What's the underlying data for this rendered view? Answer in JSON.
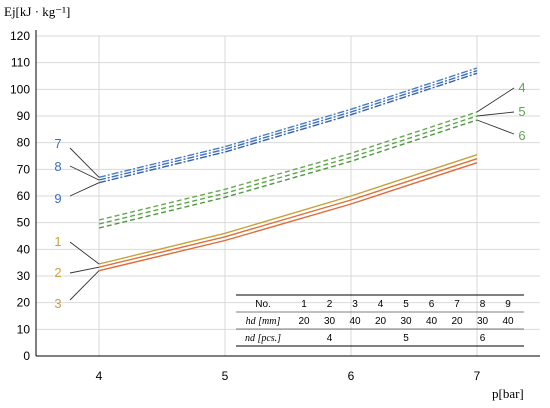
{
  "chart_data": {
    "type": "line",
    "ylabel": "Ej[kJ · kg⁻¹]",
    "xlabel": "p[bar]",
    "xlim": [
      3.5,
      7.5
    ],
    "ylim": [
      0,
      120
    ],
    "x_ticks": [
      "4",
      "5",
      "6",
      "7"
    ],
    "y_ticks": [
      "0",
      "10",
      "20",
      "30",
      "40",
      "50",
      "60",
      "70",
      "80",
      "90",
      "100",
      "110",
      "120"
    ],
    "grid": true,
    "series": [
      {
        "name": "1",
        "color": "#c8a13a",
        "style": "solid",
        "x": [
          4,
          5,
          6,
          7
        ],
        "y": [
          34.5,
          46,
          60,
          75.5
        ]
      },
      {
        "name": "2",
        "color": "#d9733a",
        "style": "solid",
        "x": [
          4,
          5,
          6,
          7
        ],
        "y": [
          33.3,
          44.7,
          58.5,
          74
        ]
      },
      {
        "name": "3",
        "color": "#e06a3a",
        "style": "solid",
        "x": [
          4,
          5,
          6,
          7
        ],
        "y": [
          32,
          43.3,
          57,
          72.5
        ]
      },
      {
        "name": "4",
        "color": "#6aa84f",
        "style": "dashed",
        "x": [
          4,
          5,
          6,
          7
        ],
        "y": [
          51,
          62.5,
          76,
          91.5
        ]
      },
      {
        "name": "5",
        "color": "#5aa84a",
        "style": "dashed",
        "x": [
          4,
          5,
          6,
          7
        ],
        "y": [
          49.5,
          61,
          74.5,
          90
        ]
      },
      {
        "name": "6",
        "color": "#4c9a3c",
        "style": "dashed",
        "x": [
          4,
          5,
          6,
          7
        ],
        "y": [
          48,
          59.5,
          73,
          88.5
        ]
      },
      {
        "name": "7",
        "color": "#4a7ec8",
        "style": "dashdot",
        "x": [
          4,
          5,
          6,
          7
        ],
        "y": [
          67,
          78.5,
          92.5,
          108
        ]
      },
      {
        "name": "8",
        "color": "#3c6fbf",
        "style": "dashdot",
        "x": [
          4,
          5,
          6,
          7
        ],
        "y": [
          66,
          77.5,
          91.5,
          107
        ]
      },
      {
        "name": "9",
        "color": "#2f62b3",
        "style": "dashdot",
        "x": [
          4,
          5,
          6,
          7
        ],
        "y": [
          65,
          76.5,
          90.5,
          106
        ]
      }
    ],
    "callouts": [
      {
        "label": "1",
        "color": "#c8a13a",
        "target_x": 4,
        "target_y": 34.5
      },
      {
        "label": "2",
        "color": "#c8a13a",
        "target_x": 4,
        "target_y": 33.3
      },
      {
        "label": "3",
        "color": "#c8a13a",
        "target_x": 4,
        "target_y": 32
      },
      {
        "label": "4",
        "color": "#5aa84a",
        "target_x": 7,
        "target_y": 91.5
      },
      {
        "label": "5",
        "color": "#5aa84a",
        "target_x": 7,
        "target_y": 90
      },
      {
        "label": "6",
        "color": "#5aa84a",
        "target_x": 7,
        "target_y": 88.5
      },
      {
        "label": "7",
        "color": "#3c6fbf",
        "target_x": 4,
        "target_y": 67
      },
      {
        "label": "8",
        "color": "#3c6fbf",
        "target_x": 4,
        "target_y": 66
      },
      {
        "label": "9",
        "color": "#3c6fbf",
        "target_x": 4,
        "target_y": 65
      }
    ],
    "legend_table": {
      "header_label": "No.",
      "numbers": [
        "1",
        "2",
        "3",
        "4",
        "5",
        "6",
        "7",
        "8",
        "9"
      ],
      "number_colors": [
        "#c8a13a",
        "#c8a13a",
        "#c8a13a",
        "#5aa84a",
        "#5aa84a",
        "#5aa84a",
        "#3c6fbf",
        "#3c6fbf",
        "#3c6fbf"
      ],
      "hd_label": "hd [mm]",
      "hd_values": [
        "20",
        "30",
        "40",
        "20",
        "30",
        "40",
        "20",
        "30",
        "40"
      ],
      "nd_label": "nd [pcs.]",
      "nd_values": [
        "4",
        "5",
        "6"
      ]
    }
  }
}
